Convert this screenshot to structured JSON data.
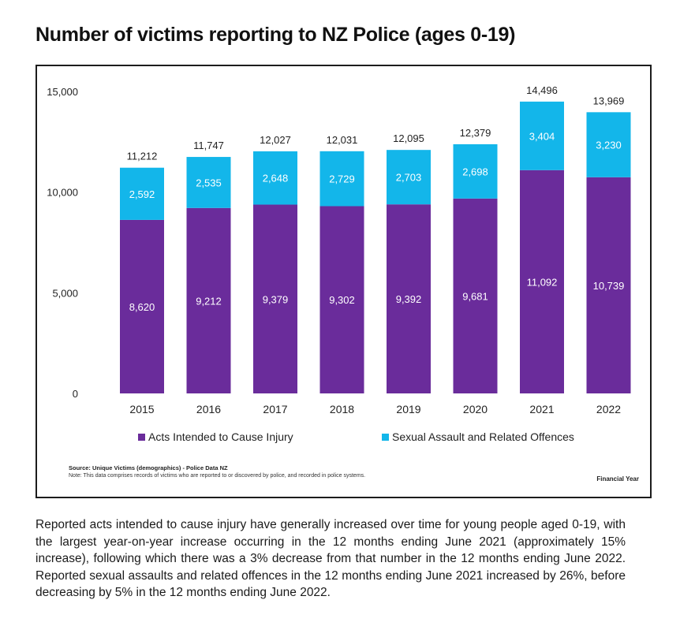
{
  "title": "Number of victims reporting to NZ Police (ages 0-19)",
  "source": "Source: Unique Victims (demographics) - Police Data NZ",
  "note": "Note: This data comprises records of victims who are reported to or discovered by police, and recorded in police systems.",
  "axis_note": "Financial Year",
  "paragraph": "Reported acts intended to cause injury have generally increased over time for young people aged 0-19, with the largest year-on-year increase occurring in the 12 months ending June 2021 (approximately 15% increase), following which there was a 3% decrease from that number in the 12 months ending June 2022. Reported sexual assaults and related offences in the 12 months ending June 2021 increased by 26%, before decreasing by 5% in the 12 months ending June 2022.",
  "colors": {
    "acts": "#6a2c9b",
    "sexual": "#13b6ea"
  },
  "chart_data": {
    "type": "bar",
    "stacked": true,
    "categories": [
      "2015",
      "2016",
      "2017",
      "2018",
      "2019",
      "2020",
      "2021",
      "2022"
    ],
    "series": [
      {
        "name": "Acts Intended to Cause Injury",
        "values": [
          8620,
          9212,
          9379,
          9302,
          9392,
          9681,
          11092,
          10739
        ]
      },
      {
        "name": "Sexual Assault and Related Offences",
        "values": [
          2592,
          2535,
          2648,
          2729,
          2703,
          2698,
          3404,
          3230
        ]
      }
    ],
    "totals": [
      "11,212",
      "11,747",
      "12,027",
      "12,031",
      "12,095",
      "12,379",
      "14,496",
      "13,969"
    ],
    "yticks": [
      "0",
      "5,000",
      "10,000",
      "15,000"
    ],
    "ylim": [
      0,
      15000
    ],
    "legend_position": "bottom",
    "grid": false
  }
}
